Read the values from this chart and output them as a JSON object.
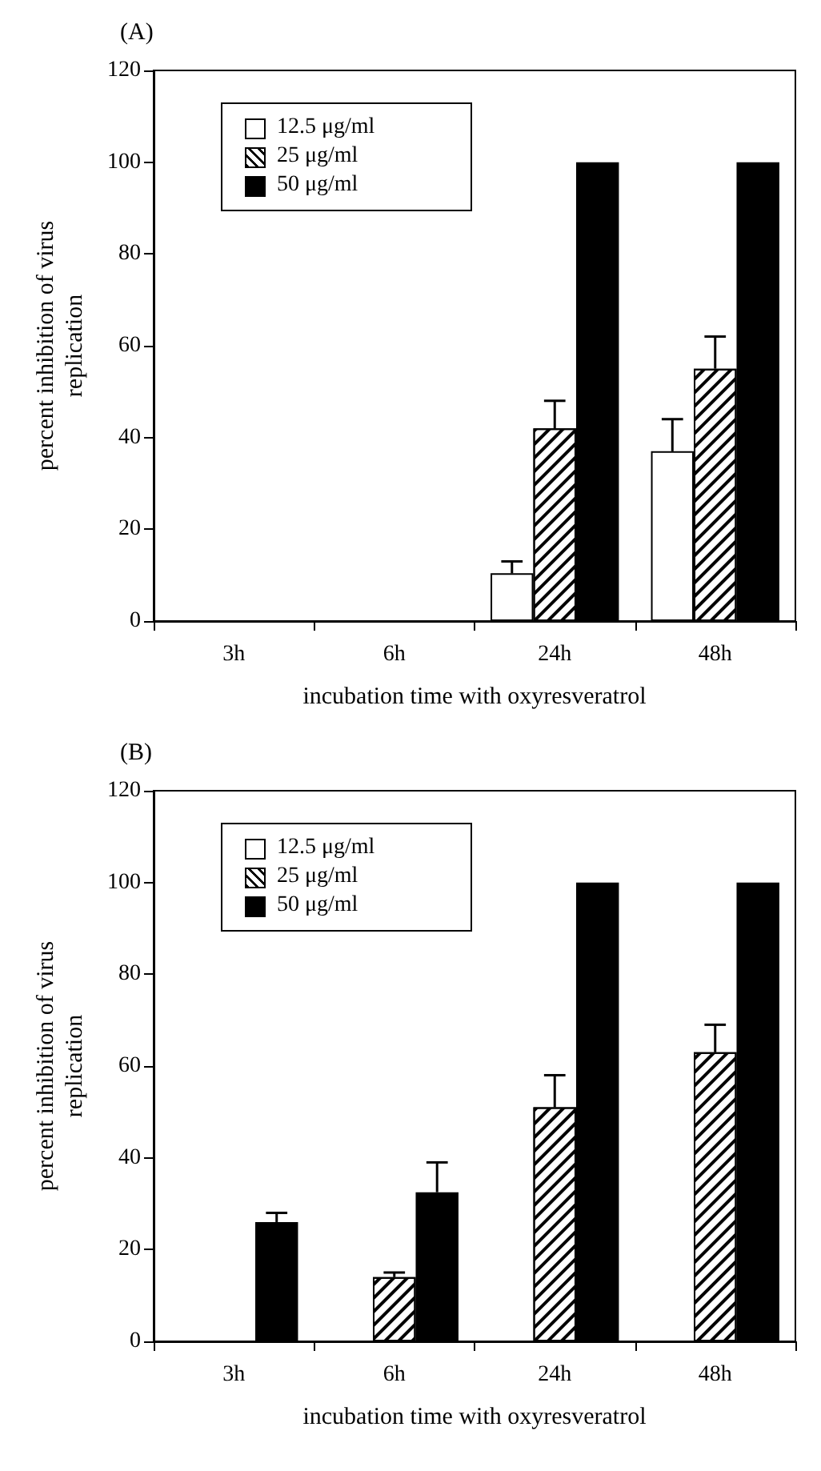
{
  "chart_data": [
    {
      "type": "bar",
      "title": "(A)",
      "xlabel": "incubation time with oxyresveratrol",
      "ylabel": "percent inhibition of virus\nreplication",
      "categories": [
        "3h",
        "6h",
        "24h",
        "48h"
      ],
      "legend": "top left",
      "grid": false,
      "ylim": [
        0,
        120
      ],
      "yticks": [
        0,
        20,
        40,
        60,
        80,
        100,
        120
      ],
      "series": [
        {
          "name": "12.5 μg/ml",
          "color": "#ffffff",
          "values": [
            0,
            0,
            10.4,
            37
          ],
          "errors": [
            null,
            null,
            [
              10.4,
              13
            ],
            [
              37,
              44
            ]
          ]
        },
        {
          "name": "25 μg/ml",
          "color": "#ffffff",
          "values": [
            0,
            0,
            42,
            55
          ],
          "errors": [
            null,
            null,
            [
              42,
              48
            ],
            [
              55,
              62
            ]
          ]
        },
        {
          "name": "50 μg/ml",
          "color": "#000000",
          "values": [
            0,
            0,
            100,
            100
          ]
        }
      ]
    },
    {
      "type": "bar",
      "title": "(B)",
      "xlabel": "incubation time with oxyresveratrol",
      "ylabel": "percent inhibition of virus\nreplication",
      "categories": [
        "3h",
        "6h",
        "24h",
        "48h"
      ],
      "legend": "top left",
      "grid": false,
      "ylim": [
        0,
        120
      ],
      "yticks": [
        0,
        20,
        40,
        60,
        80,
        100,
        120
      ],
      "series": [
        {
          "name": "12.5 μg/ml",
          "color": "#ffffff",
          "values": [
            0,
            0,
            0,
            0
          ]
        },
        {
          "name": "25 μg/ml",
          "color": "#ffffff",
          "values": [
            0,
            14,
            51,
            63
          ],
          "errors": [
            null,
            [
              14,
              15
            ],
            [
              51,
              58
            ],
            [
              63,
              69
            ]
          ]
        },
        {
          "name": "50 μg/ml",
          "color": "#000000",
          "values": [
            26,
            32.5,
            100,
            100
          ],
          "errors": [
            [
              26,
              28
            ],
            [
              32.5,
              39
            ],
            null,
            null
          ]
        }
      ]
    }
  ]
}
